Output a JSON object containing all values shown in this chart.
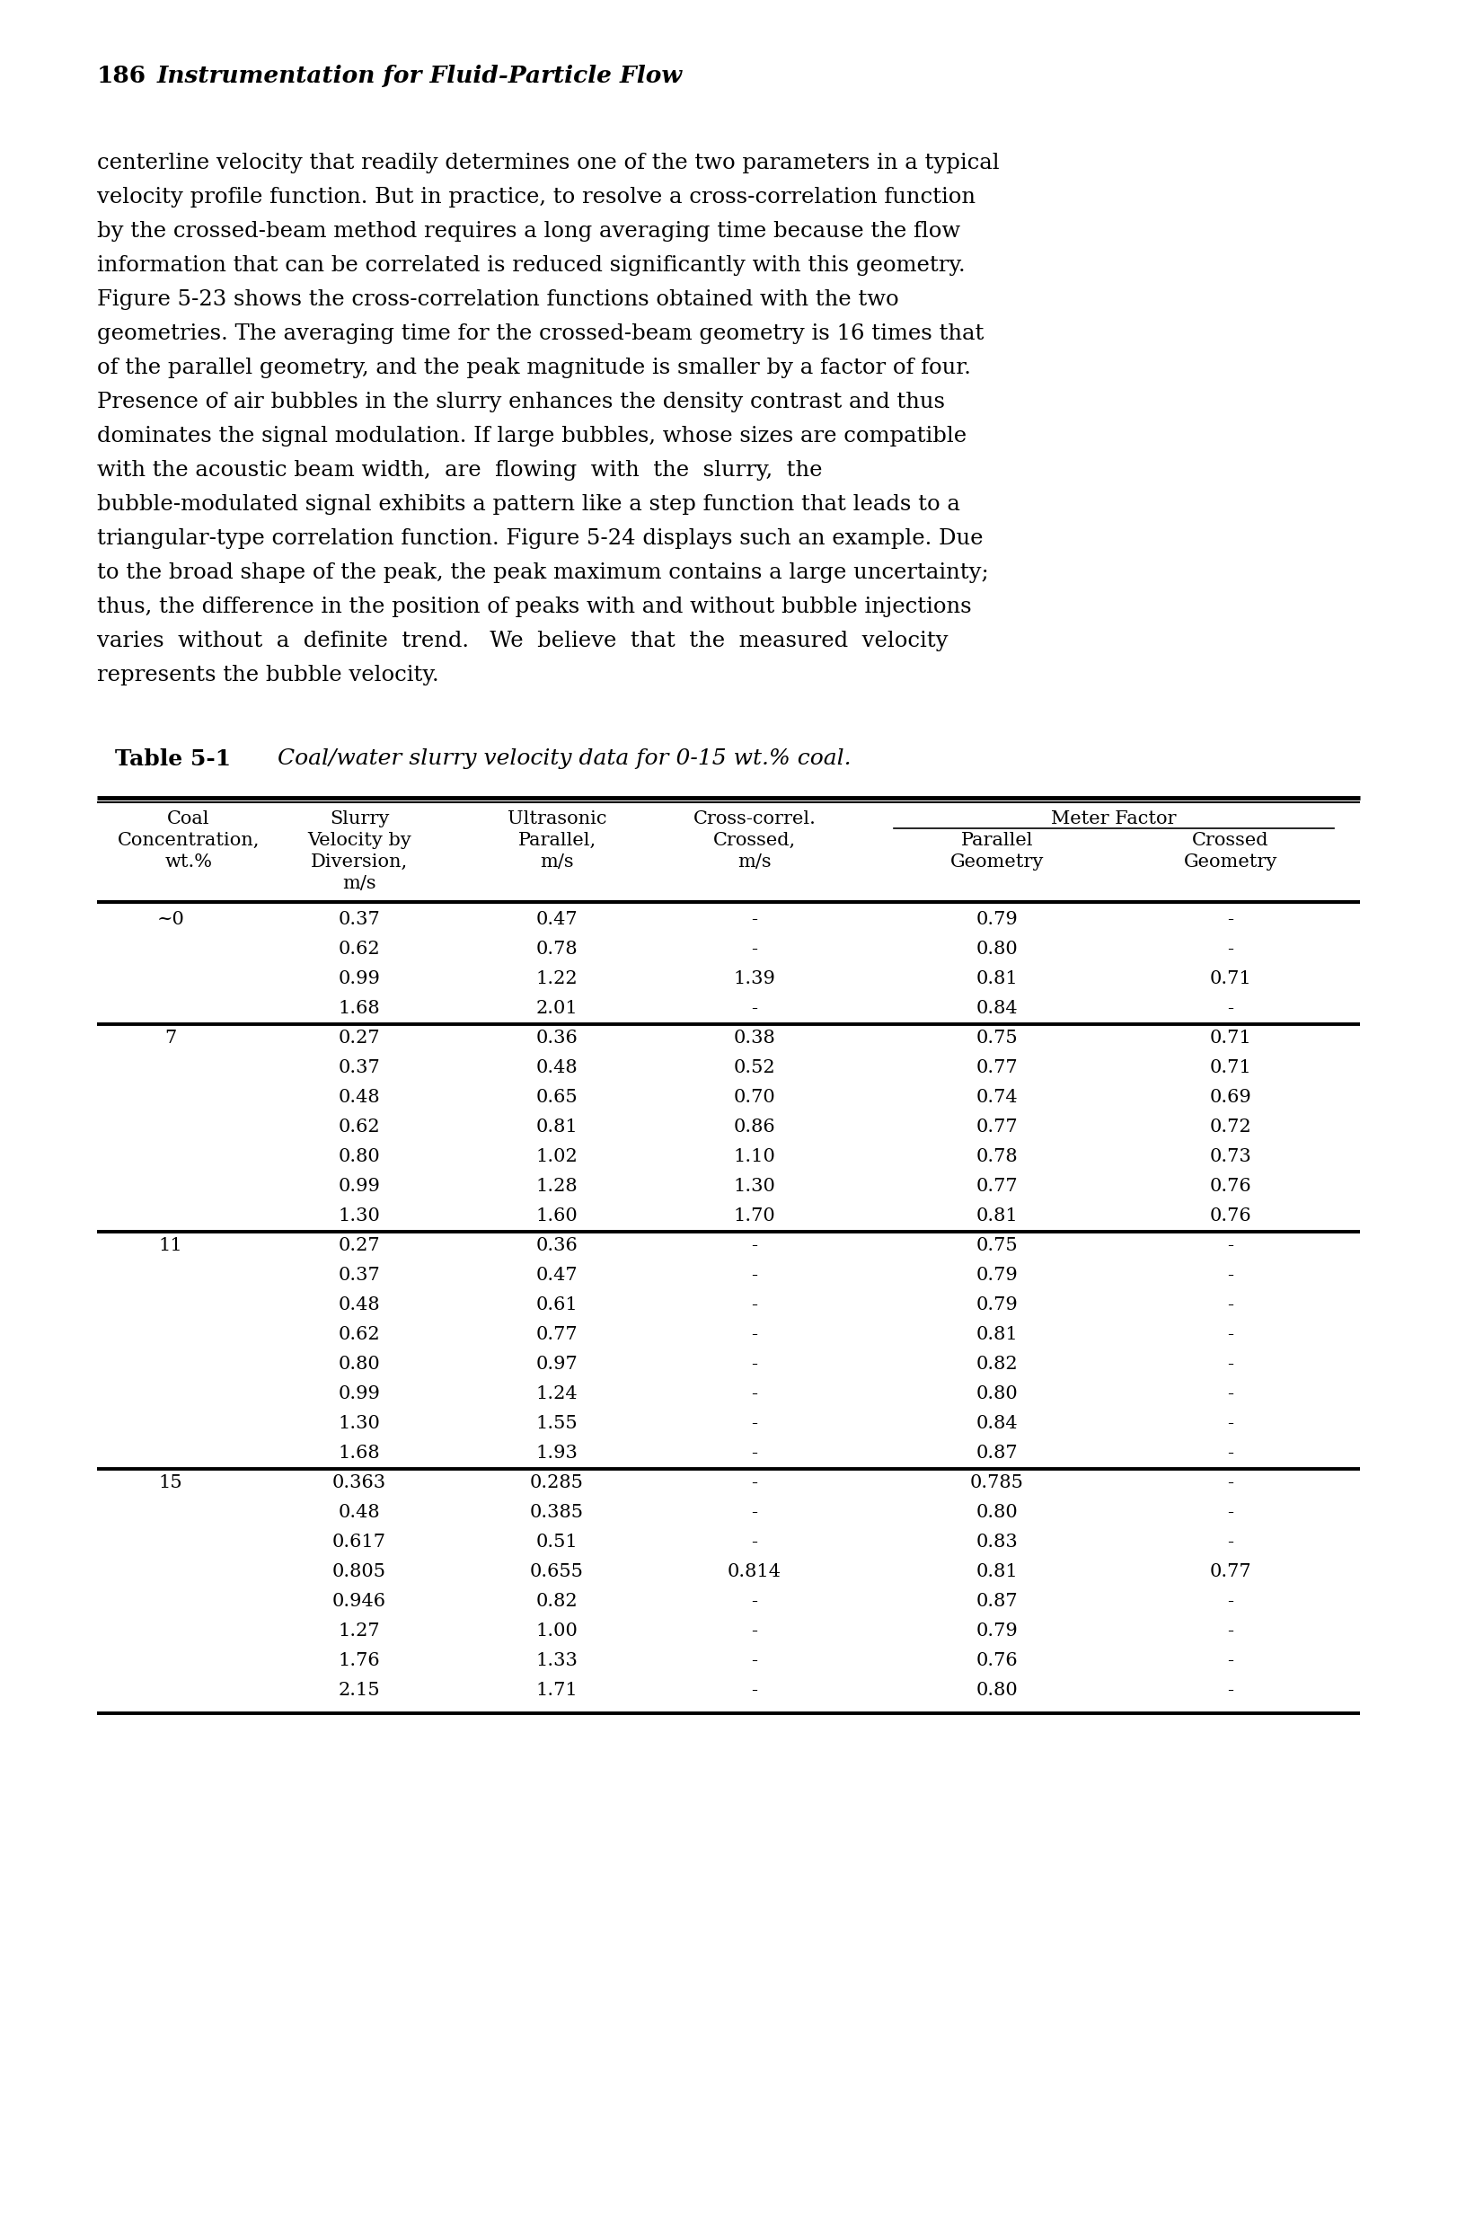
{
  "page_header_num": "186",
  "page_header_title": "Instrumentation for Fluid-Particle Flow",
  "body_lines": [
    "centerline velocity that readily determines one of the two parameters in a typical",
    "velocity profile function. But in practice, to resolve a cross-correlation function",
    "by the crossed-beam method requires a long averaging time because the flow",
    "information that can be correlated is reduced significantly with this geometry.",
    "Figure 5-23 shows the cross-correlation functions obtained with the two",
    "geometries. The averaging time for the crossed-beam geometry is 16 times that",
    "of the parallel geometry, and the peak magnitude is smaller by a factor of four.",
    "Presence of air bubbles in the slurry enhances the density contrast and thus",
    "dominates the signal modulation. If large bubbles, whose sizes are compatible",
    "with the acoustic beam width,  are  flowing  with  the  slurry,  the",
    "bubble-modulated signal exhibits a pattern like a step function that leads to a",
    "triangular-type correlation function. Figure 5-24 displays such an example. Due",
    "to the broad shape of the peak, the peak maximum contains a large uncertainty;",
    "thus, the difference in the position of peaks with and without bubble injections",
    "varies  without  a  definite  trend.   We  believe  that  the  measured  velocity",
    "represents the bubble velocity."
  ],
  "table_label": "Table 5-1",
  "table_caption": "Coal/water slurry velocity data for 0-15 wt.% coal.",
  "rows": [
    [
      "~0",
      "0.37",
      "0.47",
      "-",
      "0.79",
      "-"
    ],
    [
      "",
      "0.62",
      "0.78",
      "-",
      "0.80",
      "-"
    ],
    [
      "",
      "0.99",
      "1.22",
      "1.39",
      "0.81",
      "0.71"
    ],
    [
      "",
      "1.68",
      "2.01",
      "-",
      "0.84",
      "-"
    ],
    [
      "7",
      "0.27",
      "0.36",
      "0.38",
      "0.75",
      "0.71"
    ],
    [
      "",
      "0.37",
      "0.48",
      "0.52",
      "0.77",
      "0.71"
    ],
    [
      "",
      "0.48",
      "0.65",
      "0.70",
      "0.74",
      "0.69"
    ],
    [
      "",
      "0.62",
      "0.81",
      "0.86",
      "0.77",
      "0.72"
    ],
    [
      "",
      "0.80",
      "1.02",
      "1.10",
      "0.78",
      "0.73"
    ],
    [
      "",
      "0.99",
      "1.28",
      "1.30",
      "0.77",
      "0.76"
    ],
    [
      "",
      "1.30",
      "1.60",
      "1.70",
      "0.81",
      "0.76"
    ],
    [
      "11",
      "0.27",
      "0.36",
      "-",
      "0.75",
      "-"
    ],
    [
      "",
      "0.37",
      "0.47",
      "-",
      "0.79",
      "-"
    ],
    [
      "",
      "0.48",
      "0.61",
      "-",
      "0.79",
      "-"
    ],
    [
      "",
      "0.62",
      "0.77",
      "-",
      "0.81",
      "-"
    ],
    [
      "",
      "0.80",
      "0.97",
      "-",
      "0.82",
      "-"
    ],
    [
      "",
      "0.99",
      "1.24",
      "-",
      "0.80",
      "-"
    ],
    [
      "",
      "1.30",
      "1.55",
      "-",
      "0.84",
      "-"
    ],
    [
      "",
      "1.68",
      "1.93",
      "-",
      "0.87",
      "-"
    ],
    [
      "15",
      "0.363",
      "0.285",
      "-",
      "0.785",
      "-"
    ],
    [
      "",
      "0.48",
      "0.385",
      "-",
      "0.80",
      "-"
    ],
    [
      "",
      "0.617",
      "0.51",
      "-",
      "0.83",
      "-"
    ],
    [
      "",
      "0.805",
      "0.655",
      "0.814",
      "0.81",
      "0.77"
    ],
    [
      "",
      "0.946",
      "0.82",
      "-",
      "0.87",
      "-"
    ],
    [
      "",
      "1.27",
      "1.00",
      "-",
      "0.79",
      "-"
    ],
    [
      "",
      "1.76",
      "1.33",
      "-",
      "0.76",
      "-"
    ],
    [
      "",
      "2.15",
      "1.71",
      "-",
      "0.80",
      "-"
    ]
  ],
  "section_starts": [
    0,
    4,
    11,
    19
  ],
  "bg_color": "#ffffff",
  "text_color": "#000000"
}
